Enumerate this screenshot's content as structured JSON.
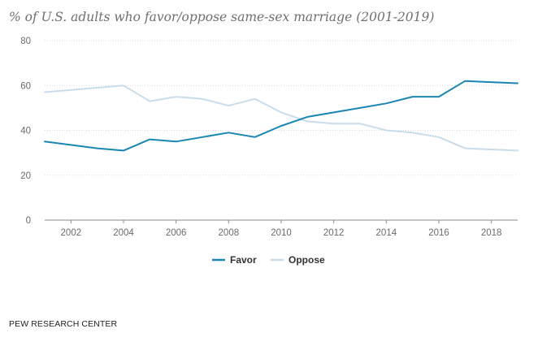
{
  "title": "% of U.S. adults who favor/oppose same-sex marriage (2001-2019)",
  "source": "PEW RESEARCH CENTER",
  "chart_data": {
    "type": "line",
    "title": "% of U.S. adults who favor/oppose same-sex marriage (2001-2019)",
    "xlabel": "",
    "ylabel": "",
    "x": [
      2001,
      2003,
      2004,
      2005,
      2006,
      2007,
      2008,
      2009,
      2010,
      2011,
      2012,
      2013,
      2014,
      2015,
      2016,
      2017,
      2019
    ],
    "x_ticks": [
      "2002",
      "2004",
      "2006",
      "2008",
      "2010",
      "2012",
      "2014",
      "2016",
      "2018"
    ],
    "y_ticks": [
      "0",
      "20",
      "40",
      "60",
      "80"
    ],
    "xlim": [
      2001,
      2019
    ],
    "ylim": [
      0,
      80
    ],
    "grid": "horizontal dotted",
    "legend_position": "bottom-center",
    "series": [
      {
        "name": "Favor",
        "color": "#1a87b2",
        "values": [
          35,
          32,
          31,
          36,
          35,
          37,
          39,
          37,
          42,
          46,
          48,
          50,
          52,
          55,
          55,
          62,
          61
        ]
      },
      {
        "name": "Oppose",
        "color": "#c9dce9",
        "values": [
          57,
          59,
          60,
          53,
          55,
          54,
          51,
          54,
          48,
          44,
          43,
          43,
          40,
          39,
          37,
          32,
          31
        ]
      }
    ]
  }
}
